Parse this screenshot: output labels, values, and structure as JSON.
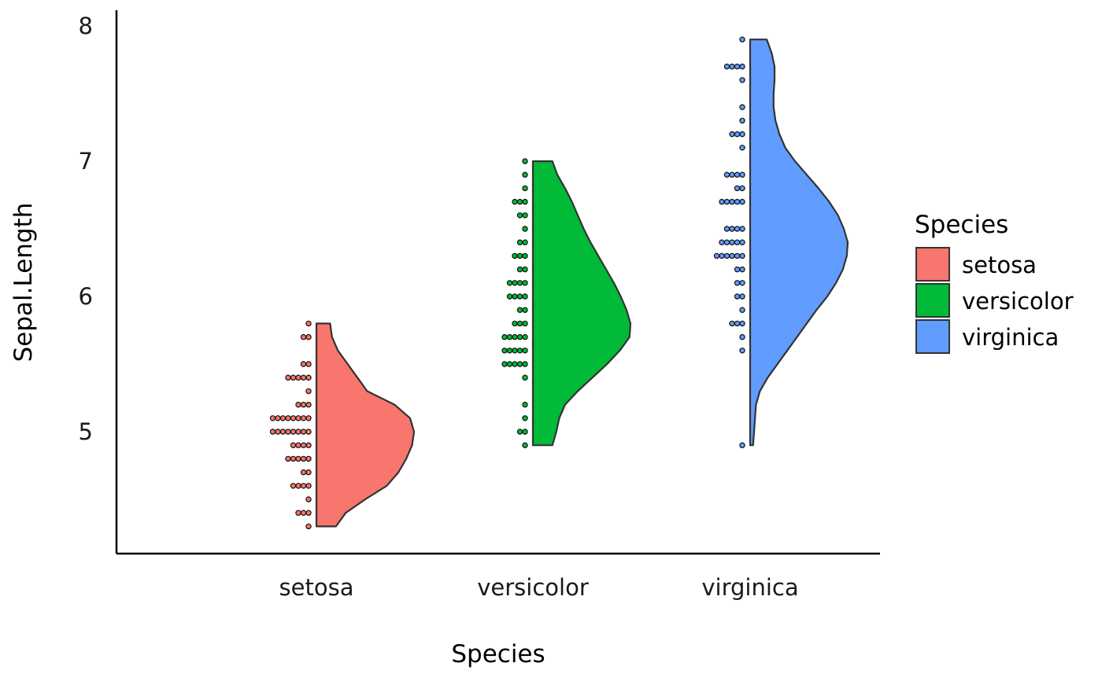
{
  "chart_data": {
    "type": "half-violin with dotplot",
    "xlabel": "Species",
    "ylabel": "Sepal.Length",
    "categories": [
      "setosa",
      "versicolor",
      "virginica"
    ],
    "ylim": [
      4.1,
      8.1
    ],
    "yticks": [
      "5",
      "6",
      "7",
      "8"
    ],
    "grid": false,
    "legend": {
      "title": "Species",
      "placement": "right",
      "entries": [
        "setosa",
        "versicolor",
        "virginica"
      ]
    },
    "colors": {
      "setosa": "#F8766D",
      "versicolor": "#00BA38",
      "virginica": "#619CFF"
    },
    "series": [
      {
        "name": "setosa",
        "range": [
          4.3,
          5.8
        ],
        "density": [
          [
            4.3,
            0.2
          ],
          [
            4.4,
            0.3
          ],
          [
            4.5,
            0.5
          ],
          [
            4.6,
            0.72
          ],
          [
            4.7,
            0.84
          ],
          [
            4.8,
            0.92
          ],
          [
            4.9,
            0.98
          ],
          [
            5.0,
            1.0
          ],
          [
            5.1,
            0.96
          ],
          [
            5.2,
            0.8
          ],
          [
            5.3,
            0.52
          ],
          [
            5.4,
            0.42
          ],
          [
            5.5,
            0.32
          ],
          [
            5.6,
            0.22
          ],
          [
            5.7,
            0.16
          ],
          [
            5.8,
            0.14
          ]
        ],
        "dots": [
          {
            "y": 4.3,
            "n": 1
          },
          {
            "y": 4.4,
            "n": 3
          },
          {
            "y": 4.5,
            "n": 1
          },
          {
            "y": 4.6,
            "n": 4
          },
          {
            "y": 4.7,
            "n": 2
          },
          {
            "y": 4.8,
            "n": 5
          },
          {
            "y": 4.9,
            "n": 4
          },
          {
            "y": 5.0,
            "n": 8
          },
          {
            "y": 5.1,
            "n": 8
          },
          {
            "y": 5.2,
            "n": 3
          },
          {
            "y": 5.3,
            "n": 1
          },
          {
            "y": 5.4,
            "n": 5
          },
          {
            "y": 5.5,
            "n": 2
          },
          {
            "y": 5.7,
            "n": 2
          },
          {
            "y": 5.8,
            "n": 1
          }
        ]
      },
      {
        "name": "versicolor",
        "range": [
          4.9,
          7.0
        ],
        "density": [
          [
            4.9,
            0.2
          ],
          [
            5.0,
            0.24
          ],
          [
            5.1,
            0.27
          ],
          [
            5.2,
            0.33
          ],
          [
            5.3,
            0.46
          ],
          [
            5.4,
            0.61
          ],
          [
            5.5,
            0.76
          ],
          [
            5.6,
            0.89
          ],
          [
            5.7,
            0.99
          ],
          [
            5.8,
            1.0
          ],
          [
            5.9,
            0.96
          ],
          [
            6.0,
            0.9
          ],
          [
            6.1,
            0.83
          ],
          [
            6.2,
            0.75
          ],
          [
            6.3,
            0.67
          ],
          [
            6.4,
            0.59
          ],
          [
            6.5,
            0.52
          ],
          [
            6.6,
            0.46
          ],
          [
            6.7,
            0.4
          ],
          [
            6.8,
            0.33
          ],
          [
            6.9,
            0.25
          ],
          [
            7.0,
            0.2
          ]
        ],
        "dots": [
          {
            "y": 4.9,
            "n": 1
          },
          {
            "y": 5.0,
            "n": 2
          },
          {
            "y": 5.1,
            "n": 1
          },
          {
            "y": 5.2,
            "n": 1
          },
          {
            "y": 5.4,
            "n": 1
          },
          {
            "y": 5.5,
            "n": 5
          },
          {
            "y": 5.6,
            "n": 5
          },
          {
            "y": 5.7,
            "n": 5
          },
          {
            "y": 5.8,
            "n": 3
          },
          {
            "y": 5.9,
            "n": 2
          },
          {
            "y": 6.0,
            "n": 4
          },
          {
            "y": 6.1,
            "n": 4
          },
          {
            "y": 6.2,
            "n": 2
          },
          {
            "y": 6.3,
            "n": 3
          },
          {
            "y": 6.4,
            "n": 2
          },
          {
            "y": 6.5,
            "n": 1
          },
          {
            "y": 6.6,
            "n": 2
          },
          {
            "y": 6.7,
            "n": 3
          },
          {
            "y": 6.8,
            "n": 1
          },
          {
            "y": 6.9,
            "n": 1
          },
          {
            "y": 7.0,
            "n": 1
          }
        ]
      },
      {
        "name": "virginica",
        "range": [
          4.9,
          7.9
        ],
        "density": [
          [
            4.9,
            0.03
          ],
          [
            5.0,
            0.04
          ],
          [
            5.1,
            0.05
          ],
          [
            5.2,
            0.06
          ],
          [
            5.3,
            0.1
          ],
          [
            5.4,
            0.18
          ],
          [
            5.5,
            0.28
          ],
          [
            5.6,
            0.38
          ],
          [
            5.7,
            0.48
          ],
          [
            5.8,
            0.58
          ],
          [
            5.9,
            0.68
          ],
          [
            6.0,
            0.79
          ],
          [
            6.1,
            0.88
          ],
          [
            6.2,
            0.95
          ],
          [
            6.3,
            0.99
          ],
          [
            6.4,
            1.0
          ],
          [
            6.5,
            0.96
          ],
          [
            6.6,
            0.9
          ],
          [
            6.7,
            0.81
          ],
          [
            6.8,
            0.7
          ],
          [
            6.9,
            0.58
          ],
          [
            7.0,
            0.46
          ],
          [
            7.1,
            0.36
          ],
          [
            7.2,
            0.3
          ],
          [
            7.3,
            0.26
          ],
          [
            7.4,
            0.24
          ],
          [
            7.5,
            0.24
          ],
          [
            7.6,
            0.25
          ],
          [
            7.7,
            0.25
          ],
          [
            7.8,
            0.22
          ],
          [
            7.9,
            0.17
          ]
        ],
        "dots": [
          {
            "y": 4.9,
            "n": 1
          },
          {
            "y": 5.6,
            "n": 1
          },
          {
            "y": 5.7,
            "n": 1
          },
          {
            "y": 5.8,
            "n": 3
          },
          {
            "y": 5.9,
            "n": 1
          },
          {
            "y": 6.0,
            "n": 2
          },
          {
            "y": 6.1,
            "n": 2
          },
          {
            "y": 6.2,
            "n": 2
          },
          {
            "y": 6.3,
            "n": 6
          },
          {
            "y": 6.4,
            "n": 5
          },
          {
            "y": 6.5,
            "n": 4
          },
          {
            "y": 6.7,
            "n": 5
          },
          {
            "y": 6.8,
            "n": 2
          },
          {
            "y": 6.9,
            "n": 4
          },
          {
            "y": 7.1,
            "n": 1
          },
          {
            "y": 7.2,
            "n": 3
          },
          {
            "y": 7.3,
            "n": 1
          },
          {
            "y": 7.4,
            "n": 1
          },
          {
            "y": 7.6,
            "n": 1
          },
          {
            "y": 7.7,
            "n": 4
          },
          {
            "y": 7.9,
            "n": 1
          }
        ]
      }
    ]
  }
}
